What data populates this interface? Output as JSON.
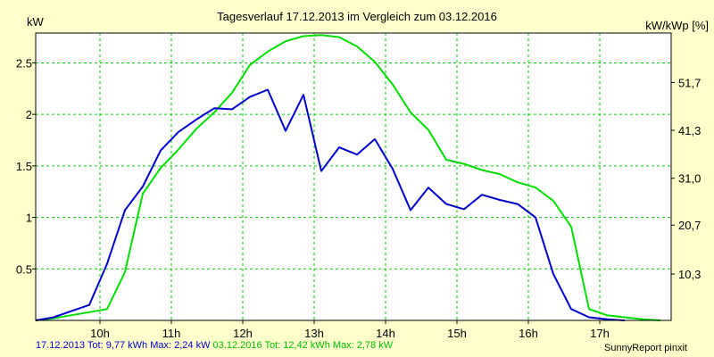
{
  "chart_data": {
    "type": "line",
    "title": "Tagesverlauf 17.12.2013 im Vergleich zum 03.12.2016",
    "ylabel": "kW",
    "ylabel_right": "kW/kWp [%]",
    "xlim": [
      9.1,
      18.0
    ],
    "ylim": [
      0,
      2.79
    ],
    "x_ticks": [
      {
        "value": 10,
        "label": "10h"
      },
      {
        "value": 11,
        "label": "11h"
      },
      {
        "value": 12,
        "label": "12h"
      },
      {
        "value": 13,
        "label": "13h"
      },
      {
        "value": 14,
        "label": "14h"
      },
      {
        "value": 15,
        "label": "15h"
      },
      {
        "value": 16,
        "label": "16h"
      },
      {
        "value": 17,
        "label": "17h"
      }
    ],
    "y_ticks": [
      {
        "value": 0.5,
        "label": "0.5"
      },
      {
        "value": 1,
        "label": "1"
      },
      {
        "value": 1.5,
        "label": "1.5"
      },
      {
        "value": 2,
        "label": "2"
      },
      {
        "value": 2.5,
        "label": "2.5"
      }
    ],
    "y2_ticks": [
      {
        "value": 0.45,
        "label": "10,3"
      },
      {
        "value": 0.925,
        "label": "20,7"
      },
      {
        "value": 1.38,
        "label": "31,0"
      },
      {
        "value": 1.845,
        "label": "41,3"
      },
      {
        "value": 2.31,
        "label": "51,7"
      }
    ],
    "grid": true,
    "series": [
      {
        "name": "17.12.2013",
        "color": "#0000cc",
        "x": [
          9.1,
          9.35,
          9.6,
          9.85,
          10.1,
          10.35,
          10.6,
          10.85,
          11.1,
          11.35,
          11.6,
          11.85,
          12.1,
          12.35,
          12.6,
          12.85,
          13.1,
          13.35,
          13.6,
          13.85,
          14.1,
          14.35,
          14.6,
          14.85,
          15.1,
          15.35,
          15.6,
          15.85,
          16.1,
          16.35,
          16.6,
          16.85,
          17.1,
          17.35
        ],
        "values": [
          0.0,
          0.03,
          0.09,
          0.15,
          0.55,
          1.07,
          1.3,
          1.65,
          1.83,
          1.95,
          2.06,
          2.05,
          2.17,
          2.24,
          1.84,
          2.19,
          1.45,
          1.68,
          1.61,
          1.76,
          1.47,
          1.07,
          1.29,
          1.13,
          1.08,
          1.22,
          1.17,
          1.13,
          1.0,
          0.45,
          0.11,
          0.03,
          0.01,
          0.0
        ]
      },
      {
        "name": "03.12.2016",
        "color": "#00dd00",
        "x": [
          9.1,
          9.35,
          9.6,
          9.85,
          10.1,
          10.35,
          10.6,
          10.85,
          11.1,
          11.35,
          11.6,
          11.85,
          12.1,
          12.35,
          12.6,
          12.85,
          13.1,
          13.35,
          13.6,
          13.85,
          14.1,
          14.35,
          14.6,
          14.85,
          15.1,
          15.35,
          15.6,
          15.85,
          16.1,
          16.35,
          16.6,
          16.85,
          17.1,
          17.35,
          17.6,
          17.85
        ],
        "values": [
          0.0,
          0.02,
          0.05,
          0.08,
          0.11,
          0.47,
          1.23,
          1.48,
          1.66,
          1.86,
          2.02,
          2.21,
          2.48,
          2.61,
          2.71,
          2.76,
          2.77,
          2.75,
          2.66,
          2.51,
          2.29,
          2.02,
          1.85,
          1.56,
          1.52,
          1.46,
          1.42,
          1.34,
          1.29,
          1.16,
          0.91,
          0.11,
          0.05,
          0.03,
          0.01,
          0.0
        ]
      }
    ]
  },
  "legend": {
    "s1_label": "17.12.2013 Tot: 9,77 kWh Max: 2,24 kW",
    "s2_label": "03.12.2016 Tot: 12,42 kWh Max: 2,78 kW"
  },
  "credit": "SunnyReport pinxit",
  "colors": {
    "background": "#ffffcc",
    "grid": "#00cc00",
    "series1": "#0000cc",
    "series2": "#00dd00"
  }
}
